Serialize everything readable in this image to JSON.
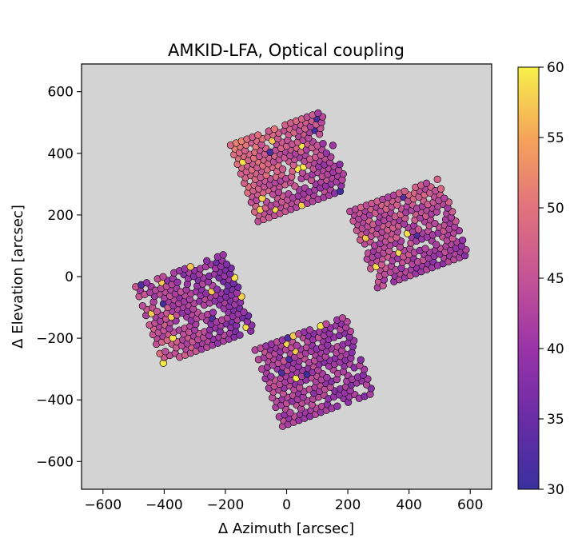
{
  "chart_data": {
    "type": "scatter",
    "title": "AMKID-LFA, Optical coupling",
    "xlabel": "Δ Azimuth [arcsec]",
    "ylabel": "Δ Elevation [arcsec]",
    "xlim": [
      -670,
      670
    ],
    "ylim": [
      -690,
      690
    ],
    "xticks": [
      -600,
      -400,
      -200,
      0,
      200,
      400,
      600
    ],
    "yticks": [
      -600,
      -400,
      -200,
      0,
      200,
      400,
      600
    ],
    "xtick_labels": [
      "−600",
      "−400",
      "−200",
      "0",
      "200",
      "400",
      "600"
    ],
    "ytick_labels": [
      "−600",
      "−400",
      "−200",
      "0",
      "200",
      "400",
      "600"
    ],
    "grid": false,
    "background_color": "#d3d3d3",
    "colormap": "plasma",
    "colorbar": {
      "vmin": 30,
      "vmax": 60,
      "ticks": [
        30,
        35,
        40,
        45,
        50,
        55,
        60
      ],
      "tick_labels": [
        "30",
        "35",
        "40",
        "45",
        "50",
        "55",
        "60"
      ]
    },
    "marker": {
      "shape": "circle",
      "edgecolor": "#000000"
    },
    "subarrays": [
      {
        "name": "top",
        "center": [
          5,
          355
        ],
        "rotation_deg": 20,
        "half_width": 170,
        "base_value": 41,
        "corner_values": {
          "top-left": 52,
          "top-right": 44,
          "bottom-left": 45,
          "bottom-right": 40
        }
      },
      {
        "name": "right",
        "center": [
          395,
          140
        ],
        "rotation_deg": 20,
        "half_width": 170,
        "base_value": 40,
        "corner_values": {
          "top-left": 45,
          "top-right": 47,
          "bottom-left": 43,
          "bottom-right": 40
        }
      },
      {
        "name": "left",
        "center": [
          -305,
          -105
        ],
        "rotation_deg": 20,
        "half_width": 170,
        "base_value": 39,
        "corner_values": {
          "top-left": 43,
          "top-right": 38,
          "bottom-left": 48,
          "bottom-right": 38
        }
      },
      {
        "name": "bottom",
        "center": [
          85,
          -310
        ],
        "rotation_deg": 20,
        "half_width": 170,
        "base_value": 40,
        "corner_values": {
          "top-left": 43,
          "top-right": 41,
          "bottom-left": 42,
          "bottom-right": 40
        }
      }
    ],
    "pixel_pitch": 19,
    "value_range_observed": [
      30,
      60
    ]
  }
}
